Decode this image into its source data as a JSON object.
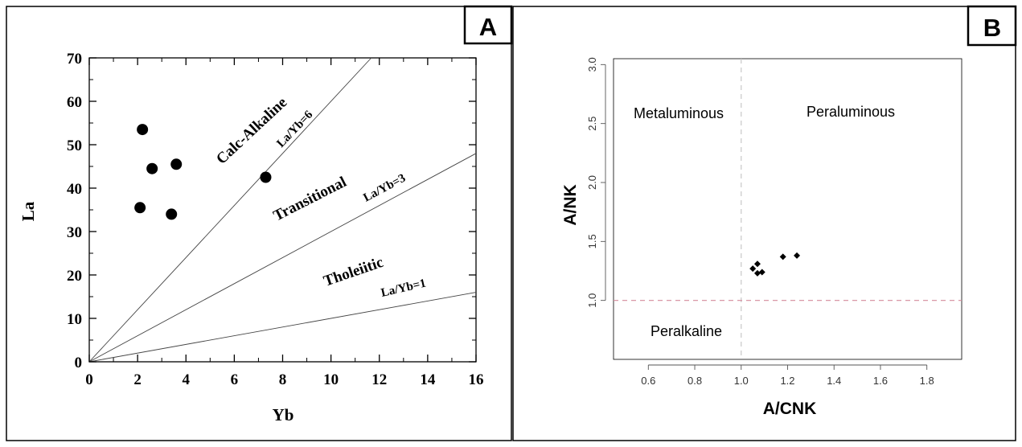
{
  "panel_a": {
    "badge": "A",
    "chart_data": {
      "type": "scatter",
      "title": "",
      "xlabel": "Yb",
      "ylabel": "La",
      "xlim": [
        0,
        16
      ],
      "ylim": [
        0,
        70
      ],
      "x_ticks": [
        0,
        2,
        4,
        6,
        8,
        10,
        12,
        14,
        16
      ],
      "y_ticks": [
        0,
        10,
        20,
        30,
        40,
        50,
        60,
        70
      ],
      "grid": false,
      "points": [
        {
          "x": 2.2,
          "y": 53.5
        },
        {
          "x": 2.6,
          "y": 44.5
        },
        {
          "x": 3.6,
          "y": 45.5
        },
        {
          "x": 2.1,
          "y": 35.5
        },
        {
          "x": 3.4,
          "y": 34.0
        },
        {
          "x": 7.3,
          "y": 42.5
        }
      ],
      "reference_lines": [
        {
          "label": "La/Yb=6",
          "slope": 6
        },
        {
          "label": "La/Yb=3",
          "slope": 3
        },
        {
          "label": "La/Yb=1",
          "slope": 1
        }
      ],
      "field_labels": [
        "Calc-Alkaline",
        "Transitional",
        "Tholeiitic"
      ]
    }
  },
  "panel_b": {
    "badge": "B",
    "chart_data": {
      "type": "scatter",
      "title": "",
      "xlabel": "A/CNK",
      "ylabel": "A/NK",
      "xlim": [
        0.45,
        1.95
      ],
      "ylim": [
        0.5,
        3.05
      ],
      "x_ticks": [
        "0.6",
        "0.8",
        "1.0",
        "1.2",
        "1.4",
        "1.6",
        "1.8"
      ],
      "y_ticks": [
        "1.0",
        "1.5",
        "2.0",
        "2.5",
        "3.0"
      ],
      "grid": false,
      "points": [
        {
          "x": 1.05,
          "y": 1.27
        },
        {
          "x": 1.07,
          "y": 1.31
        },
        {
          "x": 1.07,
          "y": 1.23
        },
        {
          "x": 1.09,
          "y": 1.24
        },
        {
          "x": 1.18,
          "y": 1.37
        },
        {
          "x": 1.24,
          "y": 1.38
        }
      ],
      "reference_lines": [
        {
          "orientation": "vertical",
          "value": 1.0,
          "color": "#c8c8c8"
        },
        {
          "orientation": "horizontal",
          "value": 1.0,
          "color": "#d4899b"
        }
      ],
      "field_labels": [
        "Metaluminous",
        "Peraluminous",
        "Peralkaline"
      ]
    }
  }
}
